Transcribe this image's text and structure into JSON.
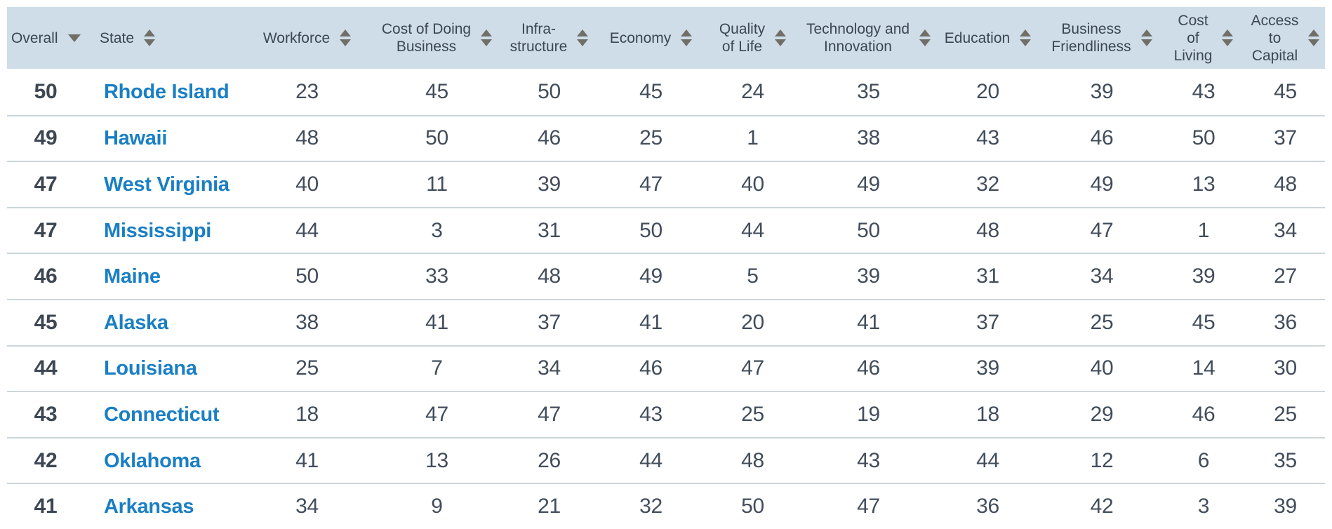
{
  "table": {
    "columns": [
      {
        "id": "overall",
        "label_lines": [
          "Overall"
        ],
        "sort_indicator": "desc",
        "align": "left"
      },
      {
        "id": "state",
        "label_lines": [
          "State"
        ],
        "sort_indicator": "both",
        "align": "left"
      },
      {
        "id": "workforce",
        "label_lines": [
          "Workforce"
        ],
        "sort_indicator": "both",
        "align": "center"
      },
      {
        "id": "cost-of-doing-business",
        "label_lines": [
          "Cost of Doing",
          "Business"
        ],
        "sort_indicator": "both",
        "align": "center"
      },
      {
        "id": "infrastructure",
        "label_lines": [
          "Infra-",
          "structure"
        ],
        "sort_indicator": "both",
        "align": "center"
      },
      {
        "id": "economy",
        "label_lines": [
          "Economy"
        ],
        "sort_indicator": "both",
        "align": "center"
      },
      {
        "id": "quality-of-life",
        "label_lines": [
          "Quality",
          "of Life"
        ],
        "sort_indicator": "both",
        "align": "center"
      },
      {
        "id": "technology-and-innovation",
        "label_lines": [
          "Technology and",
          "Innovation"
        ],
        "sort_indicator": "both",
        "align": "center"
      },
      {
        "id": "education",
        "label_lines": [
          "Education"
        ],
        "sort_indicator": "both",
        "align": "center"
      },
      {
        "id": "business-friendliness",
        "label_lines": [
          "Business",
          "Friendliness"
        ],
        "sort_indicator": "both",
        "align": "center"
      },
      {
        "id": "cost-of-living",
        "label_lines": [
          "Cost",
          "of",
          "Living"
        ],
        "sort_indicator": "both",
        "align": "center"
      },
      {
        "id": "access-to-capital",
        "label_lines": [
          "Access",
          "to",
          "Capital"
        ],
        "sort_indicator": "both",
        "align": "center"
      }
    ],
    "rows": [
      {
        "overall": "50",
        "state": "Rhode Island",
        "values": [
          "23",
          "45",
          "50",
          "45",
          "24",
          "35",
          "20",
          "39",
          "43",
          "45"
        ]
      },
      {
        "overall": "49",
        "state": "Hawaii",
        "values": [
          "48",
          "50",
          "46",
          "25",
          "1",
          "38",
          "43",
          "46",
          "50",
          "37"
        ]
      },
      {
        "overall": "47",
        "state": "West Virginia",
        "values": [
          "40",
          "11",
          "39",
          "47",
          "40",
          "49",
          "32",
          "49",
          "13",
          "48"
        ]
      },
      {
        "overall": "47",
        "state": "Mississippi",
        "values": [
          "44",
          "3",
          "31",
          "50",
          "44",
          "50",
          "48",
          "47",
          "1",
          "34"
        ]
      },
      {
        "overall": "46",
        "state": "Maine",
        "values": [
          "50",
          "33",
          "48",
          "49",
          "5",
          "39",
          "31",
          "34",
          "39",
          "27"
        ]
      },
      {
        "overall": "45",
        "state": "Alaska",
        "values": [
          "38",
          "41",
          "37",
          "41",
          "20",
          "41",
          "37",
          "25",
          "45",
          "36"
        ]
      },
      {
        "overall": "44",
        "state": "Louisiana",
        "values": [
          "25",
          "7",
          "34",
          "46",
          "47",
          "46",
          "39",
          "40",
          "14",
          "30"
        ]
      },
      {
        "overall": "43",
        "state": "Connecticut",
        "values": [
          "18",
          "47",
          "47",
          "43",
          "25",
          "19",
          "18",
          "29",
          "46",
          "25"
        ]
      },
      {
        "overall": "42",
        "state": "Oklahoma",
        "values": [
          "41",
          "13",
          "26",
          "44",
          "48",
          "43",
          "44",
          "12",
          "6",
          "35"
        ]
      },
      {
        "overall": "41",
        "state": "Arkansas",
        "values": [
          "34",
          "9",
          "21",
          "32",
          "50",
          "47",
          "36",
          "42",
          "3",
          "39"
        ]
      }
    ],
    "colors": {
      "header_background": "#cedde8",
      "header_text": "#3b4754",
      "sort_arrow": "#716e68",
      "row_text": "#424d5c",
      "state_link": "#1a7fc4",
      "row_divider": "#ccd6da"
    }
  }
}
